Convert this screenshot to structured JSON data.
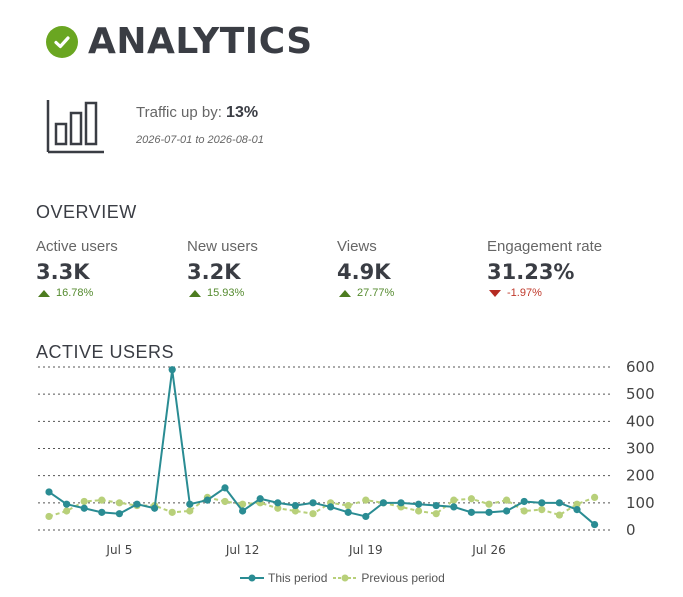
{
  "header": {
    "title": "ANALYTICS",
    "icon": "check-circle-icon",
    "icon_color": "#6aa621"
  },
  "traffic": {
    "label": "Traffic up by:",
    "value": "13%",
    "date_range": "2026-07-01 to 2026-08-01",
    "icon": "bar-chart-icon"
  },
  "overview": {
    "title": "OVERVIEW",
    "metrics": [
      {
        "label": "Active users",
        "value": "3.3K",
        "change": "16.78%",
        "direction": "up"
      },
      {
        "label": "New users",
        "value": "3.2K",
        "change": "15.93%",
        "direction": "up"
      },
      {
        "label": "Views",
        "value": "4.9K",
        "change": "27.77%",
        "direction": "up"
      },
      {
        "label": "Engagement rate",
        "value": "31.23%",
        "change": "-1.97%",
        "direction": "down"
      }
    ]
  },
  "active_users": {
    "title": "ACTIVE USERS"
  },
  "chart_data": {
    "type": "line",
    "title": "ACTIVE USERS",
    "x_tick_labels": [
      "Jul 5",
      "Jul 12",
      "Jul 19",
      "Jul 26"
    ],
    "x": [
      "Jul 1",
      "Jul 2",
      "Jul 3",
      "Jul 4",
      "Jul 5",
      "Jul 6",
      "Jul 7",
      "Jul 8",
      "Jul 9",
      "Jul 10",
      "Jul 11",
      "Jul 12",
      "Jul 13",
      "Jul 14",
      "Jul 15",
      "Jul 16",
      "Jul 17",
      "Jul 18",
      "Jul 19",
      "Jul 20",
      "Jul 21",
      "Jul 22",
      "Jul 23",
      "Jul 24",
      "Jul 25",
      "Jul 26",
      "Jul 27",
      "Jul 28",
      "Jul 29",
      "Jul 30",
      "Jul 31",
      "Aug 1"
    ],
    "ylim": [
      0,
      600
    ],
    "y_ticks": [
      0,
      100,
      200,
      300,
      400,
      500,
      600
    ],
    "y_axis_side": "right",
    "grid": true,
    "legend_position": "bottom",
    "series": [
      {
        "name": "This period",
        "color": "#2a8c93",
        "style": "solid",
        "values": [
          140,
          95,
          80,
          65,
          60,
          95,
          80,
          590,
          95,
          110,
          155,
          70,
          115,
          100,
          90,
          100,
          85,
          65,
          50,
          100,
          100,
          95,
          90,
          85,
          65,
          65,
          70,
          105,
          100,
          100,
          75,
          20
        ]
      },
      {
        "name": "Previous period",
        "color": "#b8d07a",
        "style": "dashed",
        "values": [
          50,
          70,
          105,
          110,
          100,
          90,
          90,
          65,
          70,
          120,
          105,
          95,
          100,
          80,
          70,
          60,
          100,
          90,
          110,
          100,
          85,
          70,
          60,
          110,
          115,
          95,
          110,
          70,
          75,
          55,
          95,
          120
        ]
      }
    ]
  },
  "legend": {
    "this_period": "This period",
    "previous_period": "Previous period"
  }
}
